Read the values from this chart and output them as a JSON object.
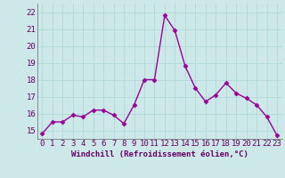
{
  "x": [
    0,
    1,
    2,
    3,
    4,
    5,
    6,
    7,
    8,
    9,
    10,
    11,
    12,
    13,
    14,
    15,
    16,
    17,
    18,
    19,
    20,
    21,
    22,
    23
  ],
  "y": [
    14.8,
    15.5,
    15.5,
    15.9,
    15.8,
    16.2,
    16.2,
    15.9,
    15.4,
    16.5,
    18.0,
    18.0,
    21.8,
    20.9,
    18.8,
    17.5,
    16.7,
    17.1,
    17.8,
    17.2,
    16.9,
    16.5,
    15.8,
    14.7
  ],
  "line_color": "#990099",
  "marker": "D",
  "marker_size": 2.5,
  "linewidth": 1.0,
  "bg_color": "#cce8e8",
  "grid_color": "#b0d8d8",
  "xlabel": "Windchill (Refroidissement éolien,°C)",
  "xlabel_fontsize": 6.5,
  "tick_fontsize": 6.5,
  "ylim": [
    14.5,
    22.5
  ],
  "yticks": [
    15,
    16,
    17,
    18,
    19,
    20,
    21,
    22
  ],
  "xlim": [
    -0.5,
    23.5
  ],
  "xticks": [
    0,
    1,
    2,
    3,
    4,
    5,
    6,
    7,
    8,
    9,
    10,
    11,
    12,
    13,
    14,
    15,
    16,
    17,
    18,
    19,
    20,
    21,
    22,
    23
  ],
  "tick_color": "#660066",
  "label_color": "#660066"
}
